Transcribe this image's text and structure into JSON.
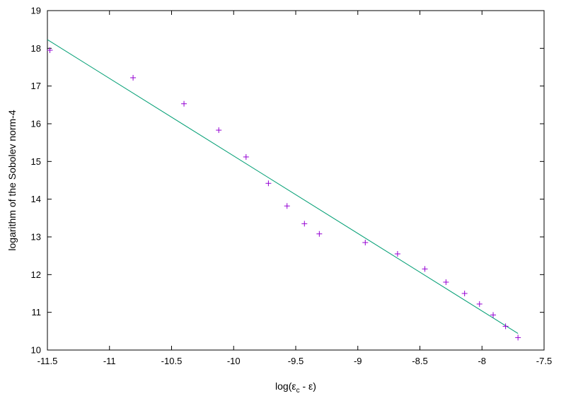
{
  "chart_data": {
    "type": "scatter",
    "title": "",
    "xlabel_main": "log(ε",
    "xlabel_sub": "c",
    "xlabel_tail": " - ε)",
    "ylabel": "logarithm of the Sobolev norm-4",
    "xlim": [
      -11.5,
      -7.5
    ],
    "ylim": [
      10,
      19
    ],
    "xticks": [
      -11.5,
      -11,
      -10.5,
      -10,
      -9.5,
      -9,
      -8.5,
      -8,
      -7.5
    ],
    "xtick_labels": [
      "-11.5",
      "-11",
      "-10.5",
      "-10",
      "-9.5",
      "-9",
      "-8.5",
      "-8",
      "-7.5"
    ],
    "yticks": [
      10,
      11,
      12,
      13,
      14,
      15,
      16,
      17,
      18,
      19
    ],
    "ytick_labels": [
      "10",
      "11",
      "12",
      "13",
      "14",
      "15",
      "16",
      "17",
      "18",
      "19"
    ],
    "grid": false,
    "legend": "none",
    "points": {
      "marker": "+",
      "color": "#9400d3",
      "x": [
        -11.48,
        -10.81,
        -10.4,
        -10.12,
        -9.9,
        -9.72,
        -9.57,
        -9.43,
        -9.31,
        -8.94,
        -8.68,
        -8.46,
        -8.29,
        -8.14,
        -8.02,
        -7.91,
        -7.81,
        -7.71
      ],
      "y": [
        17.95,
        17.22,
        16.53,
        15.83,
        15.12,
        14.42,
        13.82,
        13.35,
        13.08,
        12.85,
        12.55,
        12.15,
        11.8,
        11.5,
        11.22,
        10.93,
        10.63,
        10.33
      ]
    },
    "fit_line": {
      "color": "#009e73",
      "x": [
        -11.5,
        -7.71
      ],
      "y": [
        18.23,
        10.44
      ]
    }
  }
}
